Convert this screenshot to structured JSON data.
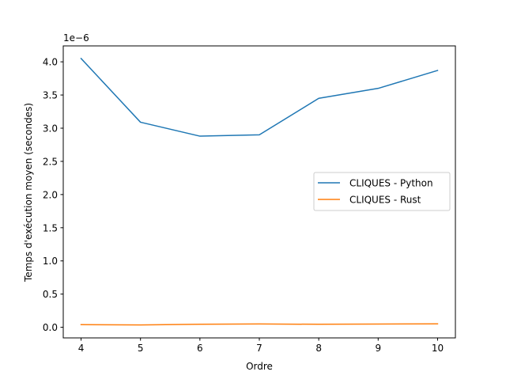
{
  "chart_data": {
    "type": "line",
    "xlabel": "Ordre",
    "ylabel": "Temps d'exécution moyen (secondes)",
    "y_scale_label": "1e−6",
    "x": [
      4,
      5,
      6,
      7,
      8,
      9,
      10
    ],
    "x_ticks": [
      "4",
      "5",
      "6",
      "7",
      "8",
      "9",
      "10"
    ],
    "y_ticks": [
      {
        "value": 0.0,
        "label": "0.0"
      },
      {
        "value": 0.5,
        "label": "0.5"
      },
      {
        "value": 1.0,
        "label": "1.0"
      },
      {
        "value": 1.5,
        "label": "1.5"
      },
      {
        "value": 2.0,
        "label": "2.0"
      },
      {
        "value": 2.5,
        "label": "2.5"
      },
      {
        "value": 3.0,
        "label": "3.0"
      },
      {
        "value": 3.5,
        "label": "3.5"
      },
      {
        "value": 4.0,
        "label": "4.0"
      }
    ],
    "xlim": [
      3.7,
      10.3
    ],
    "ylim": [
      -0.16,
      4.24
    ],
    "grid": false,
    "legend_position": "center-right",
    "series": [
      {
        "name": "CLIQUES - Python",
        "color": "#1f77b4",
        "values": [
          4.05,
          3.09,
          2.88,
          2.9,
          3.45,
          3.6,
          3.87
        ]
      },
      {
        "name": "CLIQUES - Rust",
        "color": "#ff7f0e",
        "values": [
          0.04,
          0.035,
          0.045,
          0.05,
          0.045,
          0.048,
          0.052
        ]
      }
    ]
  }
}
